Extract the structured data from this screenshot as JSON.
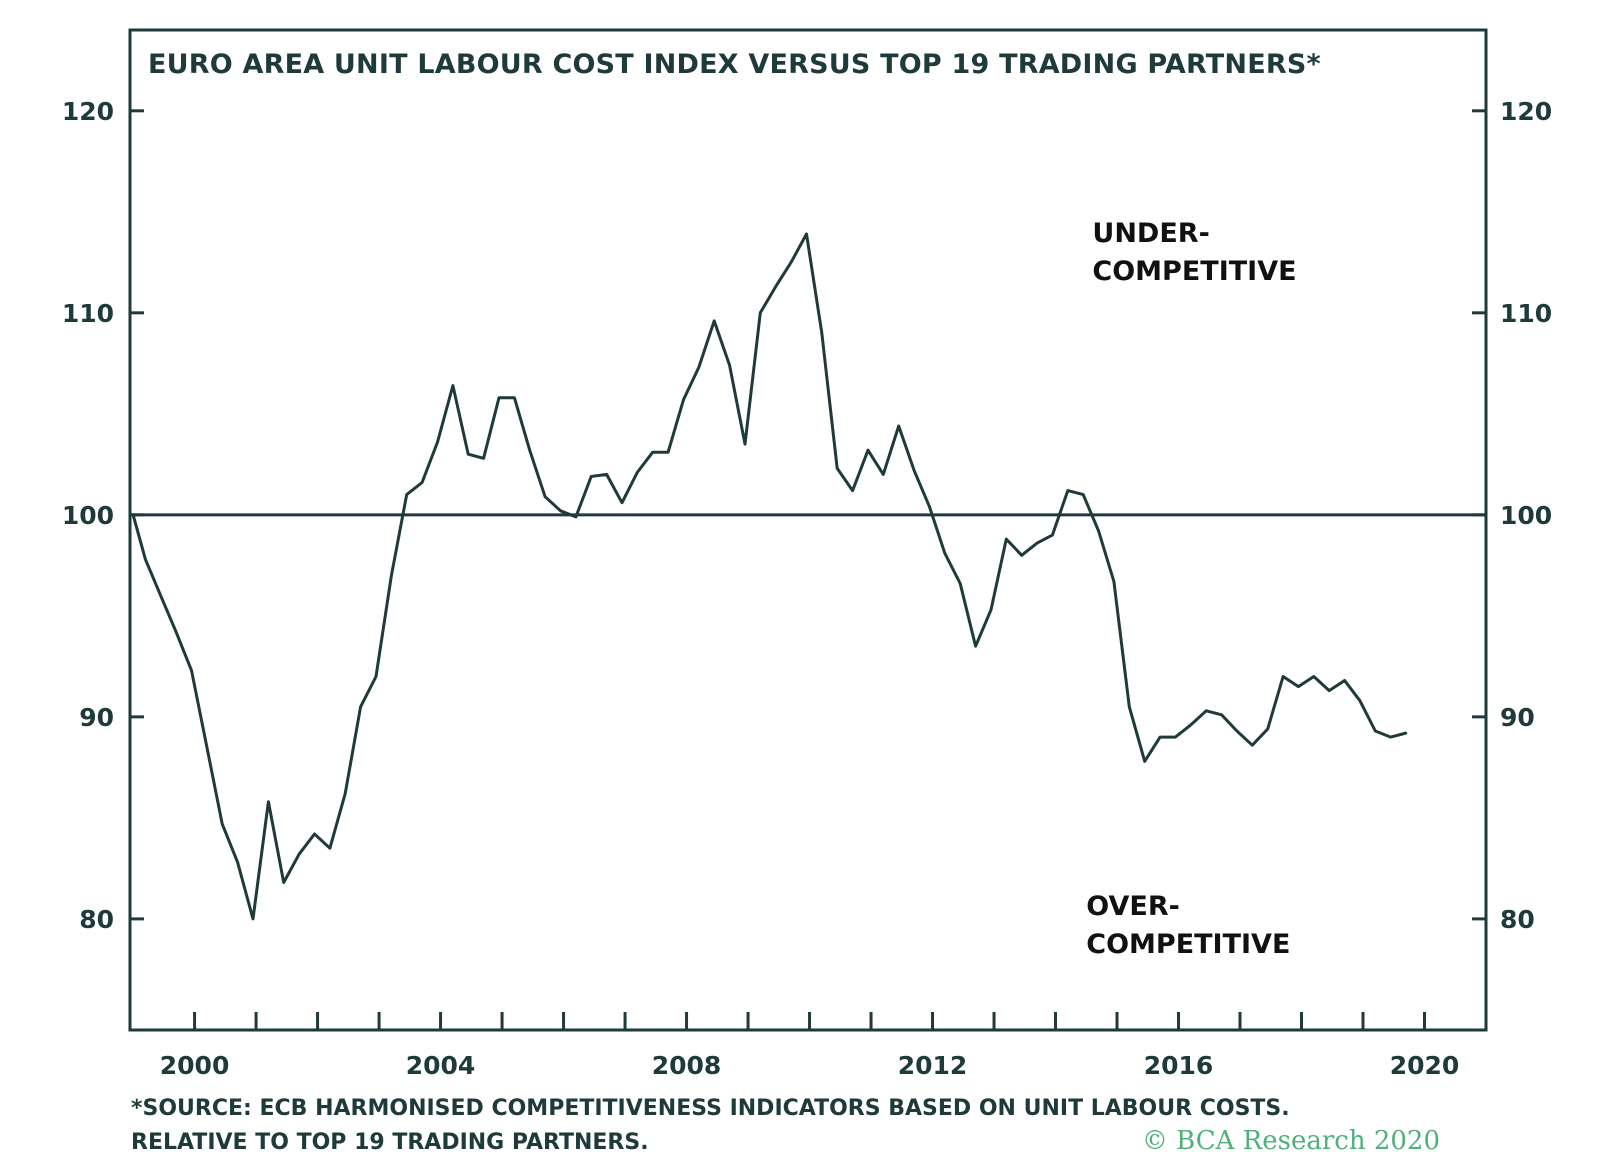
{
  "chart_data": {
    "type": "line",
    "title": "EURO AREA UNIT LABOUR COST INDEX VERSUS TOP 19 TRADING PARTNERS*",
    "ylim": [
      74.5,
      124
    ],
    "xlim": [
      1998.95,
      2021.0
    ],
    "y_ticks": [
      {
        "value": 80,
        "label": "80"
      },
      {
        "value": 90,
        "label": "90"
      },
      {
        "value": 100,
        "label": "100"
      },
      {
        "value": 110,
        "label": "110"
      },
      {
        "value": 120,
        "label": "120"
      }
    ],
    "x_labels": [
      {
        "value": 2000,
        "label": "2000"
      },
      {
        "value": 2004,
        "label": "2004"
      },
      {
        "value": 2008,
        "label": "2008"
      },
      {
        "value": 2012,
        "label": "2012"
      },
      {
        "value": 2016,
        "label": "2016"
      },
      {
        "value": 2020,
        "label": "2020"
      }
    ],
    "x_minor_ticks": [
      2000,
      2001,
      2002,
      2003,
      2004,
      2005,
      2006,
      2007,
      2008,
      2009,
      2010,
      2011,
      2012,
      2013,
      2014,
      2015,
      2016,
      2017,
      2018,
      2019,
      2020
    ],
    "reference_line": 100,
    "dual_y_axis": true,
    "grid": false,
    "annotations": [
      {
        "lines": [
          "UNDER-",
          "COMPETITIVE"
        ],
        "x": 2014.6,
        "y": 113.5
      },
      {
        "lines": [
          "OVER-",
          "COMPETITIVE"
        ],
        "x": 2014.5,
        "y": 80.2
      }
    ],
    "series": [
      {
        "color": "#1f3a3a",
        "points": [
          [
            1999.0,
            100.0
          ],
          [
            1999.2,
            97.8
          ],
          [
            1999.45,
            96.0
          ],
          [
            1999.7,
            94.2
          ],
          [
            1999.95,
            92.3
          ],
          [
            2000.2,
            88.5
          ],
          [
            2000.45,
            84.7
          ],
          [
            2000.7,
            82.8
          ],
          [
            2000.95,
            80.0
          ],
          [
            2001.2,
            85.8
          ],
          [
            2001.45,
            81.8
          ],
          [
            2001.7,
            83.2
          ],
          [
            2001.95,
            84.2
          ],
          [
            2002.2,
            83.5
          ],
          [
            2002.45,
            86.2
          ],
          [
            2002.7,
            90.5
          ],
          [
            2002.95,
            92.0
          ],
          [
            2003.2,
            97.0
          ],
          [
            2003.45,
            101.0
          ],
          [
            2003.7,
            101.6
          ],
          [
            2003.95,
            103.6
          ],
          [
            2004.2,
            106.4
          ],
          [
            2004.45,
            103.0
          ],
          [
            2004.7,
            102.8
          ],
          [
            2004.95,
            105.8
          ],
          [
            2005.2,
            105.8
          ],
          [
            2005.45,
            103.2
          ],
          [
            2005.7,
            100.9
          ],
          [
            2005.95,
            100.2
          ],
          [
            2006.2,
            99.9
          ],
          [
            2006.45,
            101.9
          ],
          [
            2006.7,
            102.0
          ],
          [
            2006.95,
            100.6
          ],
          [
            2007.2,
            102.1
          ],
          [
            2007.45,
            103.1
          ],
          [
            2007.7,
            103.1
          ],
          [
            2007.95,
            105.7
          ],
          [
            2008.2,
            107.3
          ],
          [
            2008.45,
            109.6
          ],
          [
            2008.7,
            107.4
          ],
          [
            2008.95,
            103.5
          ],
          [
            2009.2,
            110.0
          ],
          [
            2009.45,
            111.3
          ],
          [
            2009.7,
            112.5
          ],
          [
            2009.95,
            113.9
          ],
          [
            2010.2,
            109.0
          ],
          [
            2010.45,
            102.3
          ],
          [
            2010.7,
            101.2
          ],
          [
            2010.95,
            103.2
          ],
          [
            2011.2,
            102.0
          ],
          [
            2011.45,
            104.4
          ],
          [
            2011.7,
            102.2
          ],
          [
            2011.95,
            100.4
          ],
          [
            2012.2,
            98.1
          ],
          [
            2012.45,
            96.6
          ],
          [
            2012.7,
            93.5
          ],
          [
            2012.95,
            95.3
          ],
          [
            2013.2,
            98.8
          ],
          [
            2013.45,
            98.0
          ],
          [
            2013.7,
            98.6
          ],
          [
            2013.95,
            99.0
          ],
          [
            2014.2,
            101.2
          ],
          [
            2014.45,
            101.0
          ],
          [
            2014.7,
            99.2
          ],
          [
            2014.95,
            96.7
          ],
          [
            2015.2,
            90.5
          ],
          [
            2015.45,
            87.8
          ],
          [
            2015.7,
            89.0
          ],
          [
            2015.95,
            89.0
          ],
          [
            2016.2,
            89.6
          ],
          [
            2016.45,
            90.3
          ],
          [
            2016.7,
            90.1
          ],
          [
            2016.95,
            89.3
          ],
          [
            2017.2,
            88.6
          ],
          [
            2017.45,
            89.4
          ],
          [
            2017.7,
            92.0
          ],
          [
            2017.95,
            91.5
          ],
          [
            2018.2,
            92.0
          ],
          [
            2018.45,
            91.3
          ],
          [
            2018.7,
            91.8
          ],
          [
            2018.95,
            90.8
          ],
          [
            2019.2,
            89.3
          ],
          [
            2019.45,
            89.0
          ],
          [
            2019.7,
            89.2
          ]
        ]
      }
    ],
    "footnote_lines": [
      "*SOURCE: ECB HARMONISED COMPETITIVENESS INDICATORS BASED ON UNIT LABOUR COSTS.",
      "RELATIVE TO TOP 19 TRADING PARTNERS."
    ],
    "brand": "© BCA Research 2020"
  }
}
